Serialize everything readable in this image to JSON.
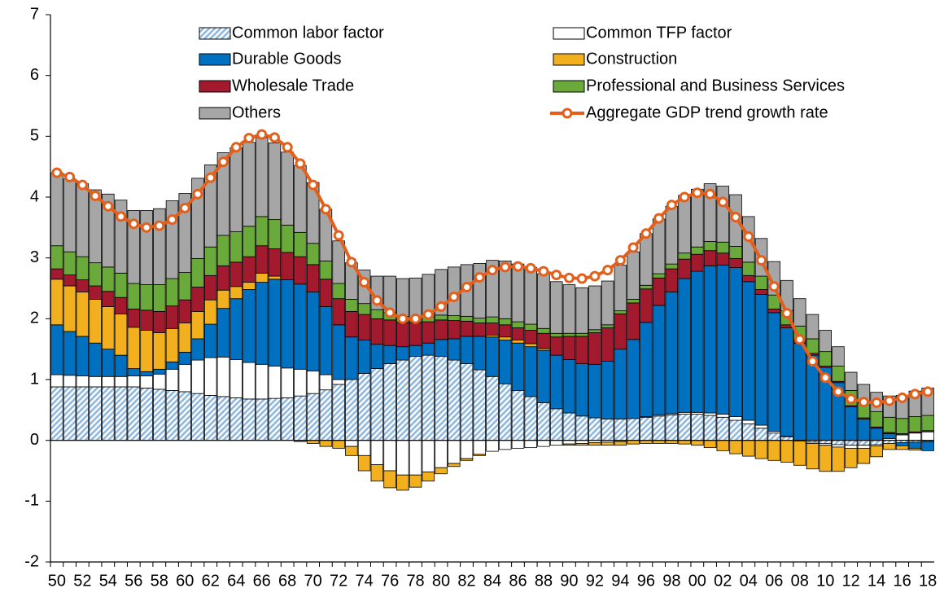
{
  "chart_data": {
    "type": "bar",
    "stacked": true,
    "categories": [
      "50",
      null,
      "52",
      null,
      "54",
      null,
      "56",
      null,
      "58",
      null,
      "60",
      null,
      "62",
      null,
      "64",
      null,
      "66",
      null,
      "68",
      null,
      "70",
      null,
      "72",
      null,
      "74",
      null,
      "76",
      null,
      "78",
      null,
      "80",
      null,
      "82",
      null,
      "84",
      null,
      "86",
      null,
      "88",
      null,
      "90",
      null,
      "92",
      null,
      "94",
      null,
      "96",
      null,
      "98",
      null,
      "00",
      null,
      "02",
      null,
      "04",
      null,
      "06",
      null,
      "08",
      null,
      "10",
      null,
      "12",
      null,
      "14",
      null,
      "16",
      null,
      "18"
    ],
    "ylim": [
      -2,
      7
    ],
    "yticks": [
      -2,
      -1,
      0,
      1,
      2,
      3,
      4,
      5,
      6,
      7
    ],
    "series": [
      {
        "name": "Common labor factor",
        "color": "#9dc3e6",
        "hatch": true,
        "values": [
          0.88,
          0.88,
          0.88,
          0.88,
          0.88,
          0.88,
          0.88,
          0.86,
          0.84,
          0.82,
          0.8,
          0.77,
          0.74,
          0.72,
          0.7,
          0.68,
          0.68,
          0.69,
          0.7,
          0.73,
          0.77,
          0.83,
          0.92,
          1.0,
          1.1,
          1.18,
          1.26,
          1.32,
          1.38,
          1.4,
          1.38,
          1.32,
          1.26,
          1.16,
          1.05,
          0.93,
          0.82,
          0.72,
          0.62,
          0.52,
          0.45,
          0.4,
          0.37,
          0.35,
          0.35,
          0.36,
          0.38,
          0.4,
          0.42,
          0.43,
          0.43,
          0.41,
          0.38,
          0.33,
          0.27,
          0.2,
          0.12,
          0.06,
          0.0,
          -0.03,
          -0.05,
          -0.07,
          -0.08,
          -0.08,
          -0.07,
          -0.05,
          -0.04,
          -0.03,
          -0.02
        ]
      },
      {
        "name": "Common TFP factor",
        "color": "#ffffff",
        "values": [
          0.2,
          0.19,
          0.18,
          0.17,
          0.17,
          0.17,
          0.18,
          0.2,
          0.25,
          0.35,
          0.45,
          0.55,
          0.62,
          0.65,
          0.63,
          0.6,
          0.57,
          0.53,
          0.49,
          0.44,
          0.37,
          0.25,
          0.08,
          -0.1,
          -0.25,
          -0.4,
          -0.5,
          -0.57,
          -0.57,
          -0.52,
          -0.45,
          -0.38,
          -0.3,
          -0.23,
          -0.18,
          -0.15,
          -0.13,
          -0.12,
          -0.1,
          -0.08,
          -0.06,
          -0.05,
          -0.04,
          -0.03,
          -0.02,
          0.0,
          0.01,
          0.02,
          0.02,
          0.03,
          0.03,
          0.04,
          0.05,
          0.06,
          0.06,
          0.05,
          0.03,
          0.01,
          -0.01,
          -0.02,
          -0.03,
          -0.04,
          -0.05,
          -0.05,
          -0.02,
          0.03,
          0.09,
          0.12,
          0.14
        ]
      },
      {
        "name": "Durable Goods",
        "color": "#0070c0",
        "values": [
          0.82,
          0.72,
          0.65,
          0.55,
          0.45,
          0.35,
          0.12,
          0.07,
          0.08,
          0.12,
          0.2,
          0.35,
          0.55,
          0.8,
          1.0,
          1.2,
          1.35,
          1.43,
          1.45,
          1.4,
          1.3,
          1.12,
          0.9,
          0.7,
          0.55,
          0.4,
          0.3,
          0.22,
          0.18,
          0.2,
          0.28,
          0.35,
          0.45,
          0.55,
          0.65,
          0.72,
          0.78,
          0.82,
          0.86,
          0.88,
          0.88,
          0.86,
          0.88,
          0.95,
          1.15,
          1.3,
          1.55,
          1.8,
          2.0,
          2.2,
          2.32,
          2.42,
          2.45,
          2.45,
          2.28,
          2.15,
          1.95,
          1.78,
          1.6,
          1.4,
          1.2,
          0.95,
          0.55,
          0.35,
          0.2,
          0.08,
          -0.05,
          -0.1,
          -0.15
        ]
      },
      {
        "name": "Construction",
        "color": "#f2b01e",
        "values": [
          0.75,
          0.75,
          0.73,
          0.72,
          0.7,
          0.68,
          0.68,
          0.68,
          0.6,
          0.55,
          0.48,
          0.45,
          0.4,
          0.3,
          0.2,
          0.12,
          0.15,
          0.05,
          0.0,
          -0.02,
          -0.05,
          -0.1,
          -0.13,
          -0.15,
          -0.25,
          -0.27,
          -0.28,
          -0.25,
          -0.2,
          -0.15,
          -0.1,
          -0.05,
          -0.03,
          -0.02,
          0.03,
          0.05,
          0.05,
          0.05,
          0.03,
          0.0,
          -0.02,
          -0.03,
          -0.04,
          -0.05,
          -0.06,
          -0.06,
          -0.05,
          -0.05,
          -0.05,
          -0.06,
          -0.08,
          -0.12,
          -0.17,
          -0.22,
          -0.26,
          -0.3,
          -0.33,
          -0.36,
          -0.4,
          -0.42,
          -0.43,
          -0.4,
          -0.32,
          -0.25,
          -0.18,
          -0.1,
          -0.06,
          -0.03,
          0.0
        ]
      },
      {
        "name": "Wholesale Trade",
        "color": "#a31a2e",
        "values": [
          0.17,
          0.18,
          0.2,
          0.22,
          0.25,
          0.27,
          0.3,
          0.33,
          0.35,
          0.37,
          0.38,
          0.4,
          0.4,
          0.4,
          0.4,
          0.42,
          0.45,
          0.45,
          0.45,
          0.45,
          0.45,
          0.45,
          0.43,
          0.42,
          0.42,
          0.42,
          0.42,
          0.4,
          0.38,
          0.35,
          0.32,
          0.3,
          0.25,
          0.22,
          0.2,
          0.2,
          0.2,
          0.22,
          0.25,
          0.3,
          0.38,
          0.45,
          0.52,
          0.55,
          0.58,
          0.6,
          0.55,
          0.45,
          0.38,
          0.32,
          0.28,
          0.25,
          0.2,
          0.15,
          0.1,
          0.08,
          0.06,
          0.05,
          0.04,
          0.03,
          0.02,
          0.02,
          0.02,
          0.02,
          0.02,
          0.02,
          0.02,
          0.02,
          0.02
        ]
      },
      {
        "name": "Professional and Business Services",
        "color": "#6aaa3a",
        "values": [
          0.38,
          0.38,
          0.38,
          0.38,
          0.4,
          0.4,
          0.42,
          0.42,
          0.44,
          0.45,
          0.45,
          0.47,
          0.47,
          0.5,
          0.5,
          0.5,
          0.48,
          0.48,
          0.45,
          0.4,
          0.35,
          0.3,
          0.25,
          0.2,
          0.18,
          0.15,
          0.12,
          0.1,
          0.08,
          0.08,
          0.08,
          0.08,
          0.08,
          0.08,
          0.1,
          0.1,
          0.1,
          0.1,
          0.08,
          0.06,
          0.05,
          0.05,
          0.05,
          0.05,
          0.05,
          0.06,
          0.06,
          0.07,
          0.08,
          0.1,
          0.12,
          0.15,
          0.18,
          0.2,
          0.22,
          0.22,
          0.23,
          0.23,
          0.24,
          0.24,
          0.24,
          0.25,
          0.25,
          0.25,
          0.25,
          0.25,
          0.25,
          0.25,
          0.25
        ]
      },
      {
        "name": "Others",
        "color": "#a6a6a6",
        "values": [
          1.2,
          1.2,
          1.2,
          1.2,
          1.2,
          1.2,
          1.2,
          1.22,
          1.25,
          1.28,
          1.3,
          1.32,
          1.35,
          1.36,
          1.38,
          1.38,
          1.3,
          1.26,
          1.2,
          1.1,
          1.0,
          0.85,
          0.7,
          0.6,
          0.55,
          0.55,
          0.6,
          0.62,
          0.65,
          0.7,
          0.75,
          0.8,
          0.85,
          0.9,
          0.93,
          0.95,
          0.95,
          0.93,
          0.9,
          0.85,
          0.8,
          0.75,
          0.72,
          0.72,
          0.75,
          0.78,
          0.85,
          0.9,
          0.95,
          0.95,
          0.95,
          0.95,
          0.92,
          0.85,
          0.75,
          0.62,
          0.55,
          0.5,
          0.45,
          0.4,
          0.35,
          0.32,
          0.3,
          0.3,
          0.32,
          0.35,
          0.38,
          0.42,
          0.45
        ]
      },
      {
        "name": "Aggregate GDP trend growth rate",
        "type": "line",
        "color": "#e2601c",
        "values": [
          4.4,
          4.33,
          4.2,
          4.02,
          3.85,
          3.68,
          3.56,
          3.5,
          3.53,
          3.63,
          3.82,
          4.05,
          4.32,
          4.58,
          4.82,
          4.97,
          5.03,
          4.98,
          4.82,
          4.55,
          4.2,
          3.8,
          3.37,
          2.93,
          2.6,
          2.3,
          2.1,
          2.0,
          2.0,
          2.07,
          2.2,
          2.36,
          2.52,
          2.68,
          2.8,
          2.85,
          2.86,
          2.83,
          2.78,
          2.72,
          2.67,
          2.66,
          2.7,
          2.8,
          2.96,
          3.17,
          3.4,
          3.65,
          3.87,
          4.0,
          4.07,
          4.05,
          3.92,
          3.67,
          3.35,
          2.96,
          2.53,
          2.09,
          1.66,
          1.3,
          1.03,
          0.8,
          0.68,
          0.63,
          0.62,
          0.65,
          0.7,
          0.76,
          0.8
        ]
      }
    ]
  }
}
